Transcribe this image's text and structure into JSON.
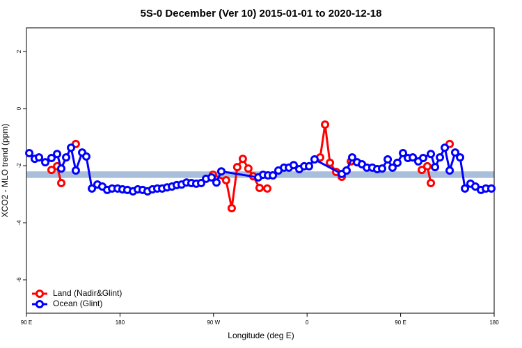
{
  "chart_data": {
    "type": "line",
    "title": "5S-0 December (Ver 10)   2015-01-01 to 2020-12-18",
    "x_label": "Longitude (deg E)",
    "y_label": "XCO2 - MLO trend (ppm)",
    "xlim": [
      90,
      540
    ],
    "ylim": [
      -7.17,
      2.83
    ],
    "xticks": [
      {
        "value": 90,
        "label": "90 E"
      },
      {
        "value": 180,
        "label": "180"
      },
      {
        "value": 270,
        "label": "90 W"
      },
      {
        "value": 360,
        "label": "0"
      },
      {
        "value": 450,
        "label": "90 E"
      },
      {
        "value": 540,
        "label": "180"
      }
    ],
    "yticks": [
      -6,
      -4,
      -2,
      0,
      2
    ],
    "reference_band": [
      -2.43,
      -2.2
    ],
    "band_color": "#a9bedb",
    "legend": "bottom-left",
    "series": [
      {
        "name": "Land (Nadir&Glint)",
        "color": "#ff0000",
        "x": [
          114.1,
          119.5,
          123.5,
          null,
          137.5,
          null,
          269.4,
          282.1,
          287.5,
          292.8,
          298.2,
          303.5,
          308.2,
          314.3,
          321.7,
          null,
          372.6,
          377.3,
          382.0,
          388.0,
          393.4,
          398.0,
          402.1,
          null,
          470.4,
          475.7,
          479.1,
          null,
          497.2
        ],
        "values": [
          -2.15,
          -2.02,
          -2.61,
          null,
          -1.24,
          null,
          -2.32,
          -2.51,
          -3.49,
          -2.05,
          -1.76,
          -2.1,
          -2.37,
          -2.78,
          -2.8,
          null,
          -1.71,
          -0.56,
          -1.9,
          -2.22,
          -2.39,
          -2.17,
          -1.85,
          null,
          -2.15,
          -2.02,
          -2.61,
          null,
          -1.24
        ]
      },
      {
        "name": "Ocean (Glint)",
        "color": "#0000ff",
        "x": [
          92.7,
          98.0,
          102.1,
          108.1,
          114.1,
          119.5,
          123.5,
          128.2,
          132.9,
          137.5,
          143.6,
          147.6,
          153.0,
          158.3,
          163.0,
          167.7,
          172.4,
          177.7,
          182.4,
          187.1,
          192.5,
          197.1,
          201.8,
          206.5,
          211.2,
          215.9,
          220.6,
          225.3,
          230.0,
          234.6,
          239.3,
          244.0,
          248.7,
          253.4,
          258.1,
          262.8,
          268.1,
          272.8,
          277.5,
          313.0,
          317.7,
          322.4,
          327.1,
          332.4,
          337.8,
          342.5,
          347.1,
          352.5,
          357.2,
          361.9,
          367.2,
          393.4,
          398.0,
          403.4,
          408.1,
          412.8,
          417.5,
          422.8,
          427.5,
          432.2,
          437.6,
          442.2,
          446.9,
          452.3,
          457.0,
          461.7,
          467.0,
          471.7,
          479.1,
          483.1,
          487.8,
          492.5,
          497.2,
          502.5,
          507.2,
          511.9,
          517.2,
          521.9,
          527.3,
          532.0,
          537.3
        ],
        "values": [
          -1.56,
          -1.76,
          -1.71,
          -1.88,
          -1.73,
          -1.59,
          -2.1,
          -1.71,
          -1.37,
          -2.17,
          -1.54,
          -1.68,
          -2.8,
          -2.66,
          -2.73,
          -2.85,
          -2.8,
          -2.8,
          -2.83,
          -2.85,
          -2.9,
          -2.83,
          -2.85,
          -2.9,
          -2.83,
          -2.8,
          -2.8,
          -2.76,
          -2.73,
          -2.68,
          -2.66,
          -2.59,
          -2.61,
          -2.63,
          -2.61,
          -2.46,
          -2.41,
          -2.59,
          -2.2,
          -2.41,
          -2.32,
          -2.34,
          -2.34,
          -2.17,
          -2.07,
          -2.07,
          -1.98,
          -2.12,
          -2.02,
          -2.02,
          -1.78,
          -2.29,
          -2.17,
          -1.71,
          -1.88,
          -1.95,
          -2.07,
          -2.07,
          -2.12,
          -2.1,
          -1.78,
          -2.07,
          -1.9,
          -1.56,
          -1.73,
          -1.71,
          -1.85,
          -1.73,
          -1.59,
          -2.05,
          -1.71,
          -1.37,
          -2.17,
          -1.54,
          -1.71,
          -2.8,
          -2.63,
          -2.73,
          -2.85,
          -2.8,
          -2.8
        ]
      }
    ]
  }
}
